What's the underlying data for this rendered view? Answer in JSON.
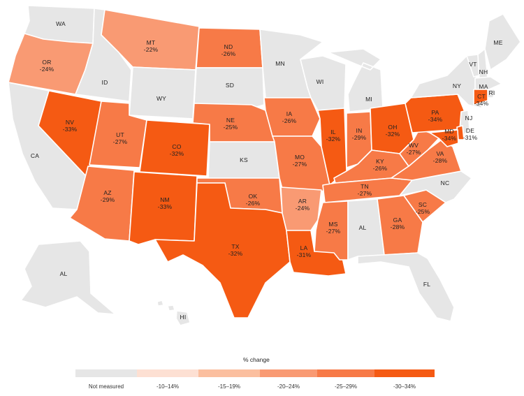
{
  "colors": {
    "not_measured": "#e6e6e6",
    "bin_10_14": "#fde0d3",
    "bin_15_19": "#fbbf9f",
    "bin_20_24": "#f99a73",
    "bin_25_29": "#f77a47",
    "bin_30_34": "#f55a13"
  },
  "legend": {
    "title": "% change",
    "items": [
      {
        "label": "Not measured",
        "color": "#e6e6e6"
      },
      {
        "label": "-10–14%",
        "color": "#fde0d3"
      },
      {
        "label": "-15–19%",
        "color": "#fbbf9f"
      },
      {
        "label": "-20–24%",
        "color": "#f99a73"
      },
      {
        "label": "-25–29%",
        "color": "#f77a47"
      },
      {
        "label": "-30–34%",
        "color": "#f55a13"
      }
    ]
  },
  "states": [
    {
      "abbr": "WA",
      "value": ""
    },
    {
      "abbr": "OR",
      "value": "-24%"
    },
    {
      "abbr": "CA",
      "value": ""
    },
    {
      "abbr": "ID",
      "value": ""
    },
    {
      "abbr": "NV",
      "value": "-33%"
    },
    {
      "abbr": "MT",
      "value": "-22%"
    },
    {
      "abbr": "WY",
      "value": ""
    },
    {
      "abbr": "UT",
      "value": "-27%"
    },
    {
      "abbr": "AZ",
      "value": "-29%"
    },
    {
      "abbr": "CO",
      "value": "-32%"
    },
    {
      "abbr": "NM",
      "value": "-33%"
    },
    {
      "abbr": "ND",
      "value": "-26%"
    },
    {
      "abbr": "SD",
      "value": ""
    },
    {
      "abbr": "NE",
      "value": "-25%"
    },
    {
      "abbr": "KS",
      "value": ""
    },
    {
      "abbr": "OK",
      "value": "-26%"
    },
    {
      "abbr": "TX",
      "value": "-32%"
    },
    {
      "abbr": "MN",
      "value": ""
    },
    {
      "abbr": "IA",
      "value": "-26%"
    },
    {
      "abbr": "MO",
      "value": "-27%"
    },
    {
      "abbr": "AR",
      "value": "-24%"
    },
    {
      "abbr": "LA",
      "value": "-31%"
    },
    {
      "abbr": "WI",
      "value": ""
    },
    {
      "abbr": "IL",
      "value": "-32%"
    },
    {
      "abbr": "MI",
      "value": ""
    },
    {
      "abbr": "IN",
      "value": "-29%"
    },
    {
      "abbr": "OH",
      "value": "-32%"
    },
    {
      "abbr": "KY",
      "value": "-26%"
    },
    {
      "abbr": "TN",
      "value": "-27%"
    },
    {
      "abbr": "MS",
      "value": "-27%"
    },
    {
      "abbr": "AL",
      "value": ""
    },
    {
      "abbr": "GA",
      "value": "-28%"
    },
    {
      "abbr": "FL",
      "value": ""
    },
    {
      "abbr": "SC",
      "value": "-25%"
    },
    {
      "abbr": "NC",
      "value": ""
    },
    {
      "abbr": "VA",
      "value": "-28%"
    },
    {
      "abbr": "WV",
      "value": "-27%"
    },
    {
      "abbr": "PA",
      "value": "-34%"
    },
    {
      "abbr": "NY",
      "value": ""
    },
    {
      "abbr": "VT",
      "value": ""
    },
    {
      "abbr": "NH",
      "value": ""
    },
    {
      "abbr": "ME",
      "value": ""
    },
    {
      "abbr": "MA",
      "value": ""
    },
    {
      "abbr": "RI",
      "value": ""
    },
    {
      "abbr": "CT",
      "value": "-34%"
    },
    {
      "abbr": "NJ",
      "value": ""
    },
    {
      "abbr": "DE",
      "value": "-31%"
    },
    {
      "abbr": "MD",
      "value": "-34%"
    },
    {
      "abbr": "AK",
      "label": "AL",
      "value": ""
    },
    {
      "abbr": "HI",
      "value": ""
    }
  ]
}
